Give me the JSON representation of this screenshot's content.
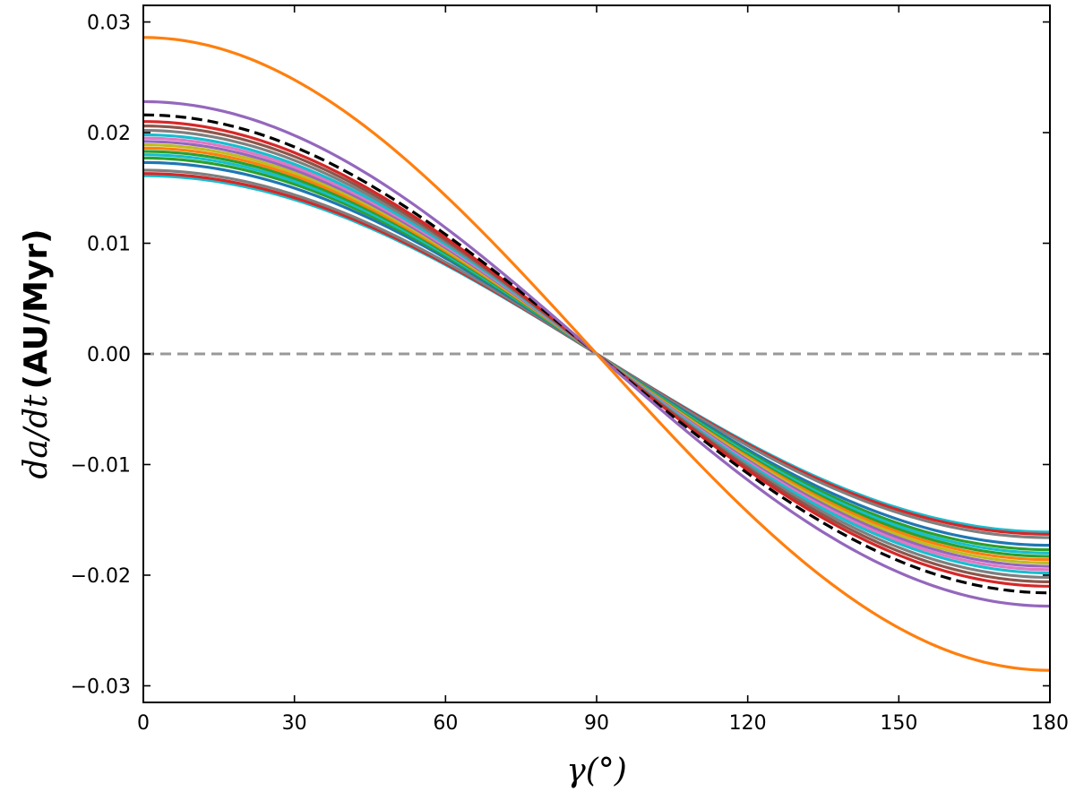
{
  "chart_data": {
    "type": "line",
    "xlabel": "γ(°)",
    "ylabel_math": "da/dt",
    "ylabel_unit": "(AU/Myr)",
    "xlim": [
      0,
      180
    ],
    "ylim": [
      -0.0315,
      0.0315
    ],
    "xticks": [
      0,
      30,
      60,
      90,
      120,
      150,
      180
    ],
    "xtick_labels": [
      "0",
      "30",
      "60",
      "90",
      "120",
      "150",
      "180"
    ],
    "yticks": [
      -0.03,
      -0.02,
      -0.01,
      0.0,
      0.01,
      0.02,
      0.03
    ],
    "ytick_labels": [
      "−0.03",
      "−0.02",
      "−0.01",
      "0.00",
      "0.01",
      "0.02",
      "0.03"
    ],
    "grid": false,
    "functional_form": "A·cos(γ)",
    "zero_line": {
      "y": 0,
      "color": "#999999",
      "style": "dashed"
    },
    "series": [
      {
        "amplitude": 0.0286,
        "color": "#ff7f0e",
        "style": "solid"
      },
      {
        "amplitude": 0.0228,
        "color": "#9467bd",
        "style": "solid"
      },
      {
        "amplitude": 0.0216,
        "color": "#000000",
        "style": "dashed"
      },
      {
        "amplitude": 0.021,
        "color": "#d62728",
        "style": "solid"
      },
      {
        "amplitude": 0.0206,
        "color": "#8c564b",
        "style": "solid"
      },
      {
        "amplitude": 0.0202,
        "color": "#7f7f7f",
        "style": "solid"
      },
      {
        "amplitude": 0.0198,
        "color": "#17becf",
        "style": "solid"
      },
      {
        "amplitude": 0.0195,
        "color": "#e377c2",
        "style": "solid"
      },
      {
        "amplitude": 0.0192,
        "color": "#9467bd",
        "style": "solid"
      },
      {
        "amplitude": 0.0189,
        "color": "#bcbd22",
        "style": "solid"
      },
      {
        "amplitude": 0.0186,
        "color": "#ff7f0e",
        "style": "solid"
      },
      {
        "amplitude": 0.0183,
        "color": "#2ca02c",
        "style": "solid"
      },
      {
        "amplitude": 0.018,
        "color": "#17becf",
        "style": "solid"
      },
      {
        "amplitude": 0.0177,
        "color": "#2ca02c",
        "style": "solid"
      },
      {
        "amplitude": 0.0173,
        "color": "#1f77b4",
        "style": "solid"
      },
      {
        "amplitude": 0.0166,
        "color": "#7f7f7f",
        "style": "solid"
      },
      {
        "amplitude": 0.0163,
        "color": "#d62728",
        "style": "solid"
      },
      {
        "amplitude": 0.0161,
        "color": "#17becf",
        "style": "solid"
      }
    ]
  }
}
